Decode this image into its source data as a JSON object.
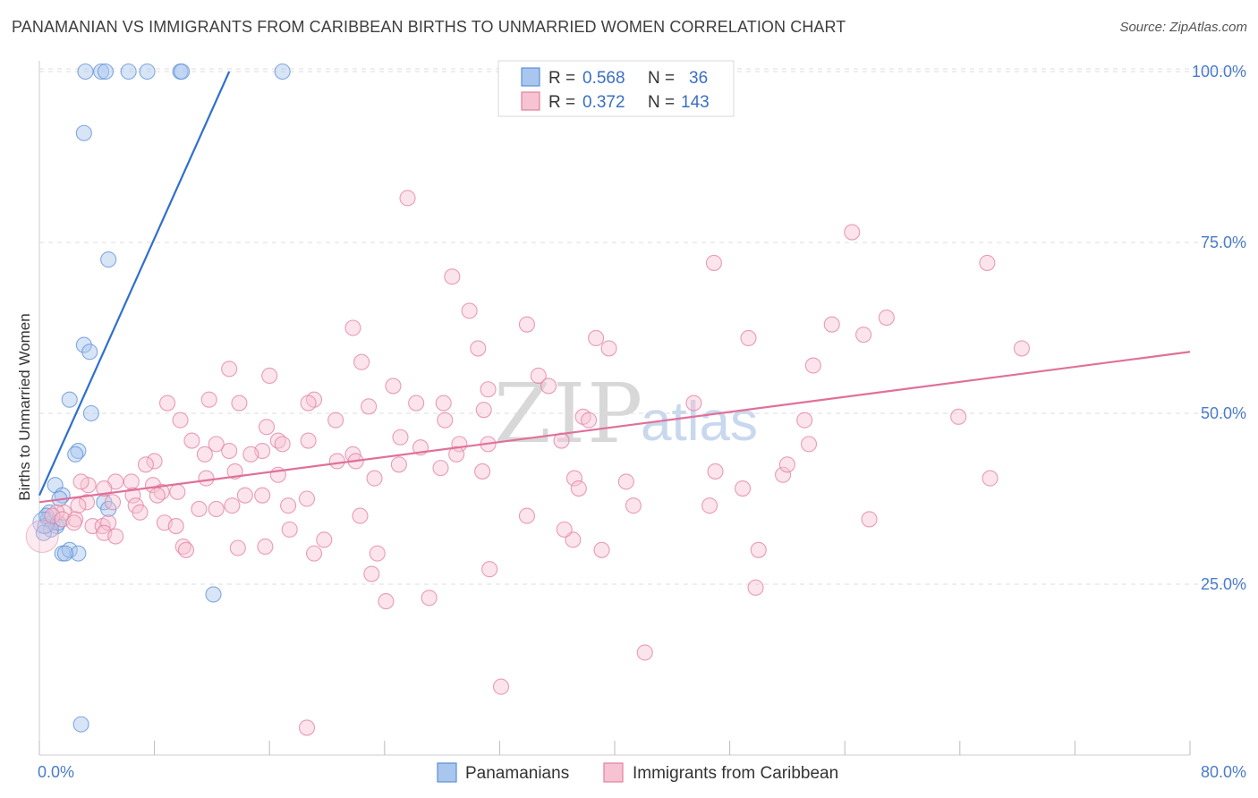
{
  "title": "PANAMANIAN VS IMMIGRANTS FROM CARIBBEAN BIRTHS TO UNMARRIED WOMEN CORRELATION CHART",
  "source": "Source: ZipAtlas.com",
  "watermark": {
    "zip": "ZIP",
    "atlas": "atlas"
  },
  "chart_data": {
    "type": "scatter",
    "title": "PANAMANIAN VS IMMIGRANTS FROM CARIBBEAN BIRTHS TO UNMARRIED WOMEN CORRELATION CHART",
    "xlabel": "",
    "ylabel": "Births to Unmarried Women",
    "xlim": [
      0,
      80
    ],
    "ylim": [
      0,
      105
    ],
    "x_tick_labels": {
      "min": "0.0%",
      "max": "80.0%"
    },
    "y_ticks": [
      25,
      50,
      75,
      100
    ],
    "y_tick_labels": [
      "25.0%",
      "50.0%",
      "75.0%",
      "100.0%"
    ],
    "grid": "horizontal dashed",
    "legend_position": "top-center",
    "stats_legend": [
      {
        "r_label": "R =",
        "r_value": "0.568",
        "n_label": "N =",
        "n_value": "36"
      },
      {
        "r_label": "R =",
        "r_value": "0.372",
        "n_label": "N =",
        "n_value": "143"
      }
    ],
    "series": [
      {
        "name": "Panamanians",
        "color": "#5b8fd6",
        "fill": "#a9c6ee",
        "trend": {
          "x0": 0,
          "y0": 38,
          "x1": 13.2,
          "y1": 100
        },
        "points": [
          [
            3.2,
            100
          ],
          [
            4.3,
            100
          ],
          [
            4.6,
            100
          ],
          [
            6.2,
            100
          ],
          [
            7.5,
            100
          ],
          [
            9.8,
            100
          ],
          [
            9.9,
            100
          ],
          [
            16.9,
            100
          ],
          [
            3.1,
            91
          ],
          [
            4.8,
            72.5
          ],
          [
            3.1,
            60
          ],
          [
            3.5,
            59
          ],
          [
            2.1,
            52
          ],
          [
            3.6,
            50
          ],
          [
            2.7,
            44.5
          ],
          [
            2.5,
            44
          ],
          [
            1.1,
            39.5
          ],
          [
            1.6,
            38
          ],
          [
            1.4,
            37.5
          ],
          [
            4.5,
            37
          ],
          [
            4.8,
            36
          ],
          [
            0.7,
            35.5
          ],
          [
            0.6,
            34.5
          ],
          [
            0.9,
            34
          ],
          [
            0.4,
            33.5
          ],
          [
            1.2,
            33.5
          ],
          [
            0.8,
            33
          ],
          [
            0.3,
            32.5
          ],
          [
            1.6,
            29.5
          ],
          [
            2.1,
            30
          ],
          [
            2.7,
            29.5
          ],
          [
            1.8,
            29.5
          ],
          [
            12.1,
            23.5
          ],
          [
            2.9,
            4.5
          ],
          [
            0.5,
            35
          ],
          [
            1.3,
            34
          ]
        ]
      },
      {
        "name": "Immigrants from Caribbean",
        "color": "#e27fa0",
        "fill": "#f6c3d3",
        "trend": {
          "x0": 0,
          "y0": 37,
          "x1": 80,
          "y1": 59
        },
        "points": [
          [
            25.6,
            81.5
          ],
          [
            28.7,
            70
          ],
          [
            56.5,
            76.5
          ],
          [
            46.9,
            72
          ],
          [
            65.9,
            72
          ],
          [
            29.9,
            65
          ],
          [
            33.9,
            63
          ],
          [
            21.8,
            62.5
          ],
          [
            58.9,
            64
          ],
          [
            55.1,
            63
          ],
          [
            57.3,
            61.5
          ],
          [
            38.7,
            61
          ],
          [
            49.3,
            61
          ],
          [
            39.6,
            59.5
          ],
          [
            30.5,
            59.5
          ],
          [
            68.3,
            59.5
          ],
          [
            22.4,
            57.5
          ],
          [
            13.2,
            56.5
          ],
          [
            16.0,
            55.5
          ],
          [
            53.8,
            57
          ],
          [
            34.7,
            55.5
          ],
          [
            35.4,
            54
          ],
          [
            24.6,
            54
          ],
          [
            31.2,
            53.5
          ],
          [
            19.1,
            52
          ],
          [
            8.9,
            51.5
          ],
          [
            11.8,
            52
          ],
          [
            26.2,
            51.5
          ],
          [
            13.9,
            51.5
          ],
          [
            28.1,
            51.5
          ],
          [
            22.9,
            51
          ],
          [
            18.7,
            51.5
          ],
          [
            45.5,
            51.5
          ],
          [
            37.8,
            49.5
          ],
          [
            30.9,
            50.5
          ],
          [
            38.2,
            49
          ],
          [
            28.2,
            49
          ],
          [
            20.6,
            49
          ],
          [
            15.8,
            48
          ],
          [
            9.8,
            49
          ],
          [
            63.9,
            49.5
          ],
          [
            53.2,
            49
          ],
          [
            16.6,
            46
          ],
          [
            18.7,
            46
          ],
          [
            25.1,
            46.5
          ],
          [
            12.3,
            45.5
          ],
          [
            10.6,
            46
          ],
          [
            13.2,
            44.5
          ],
          [
            26.5,
            45
          ],
          [
            16.9,
            45.5
          ],
          [
            15.5,
            44.5
          ],
          [
            8.0,
            43
          ],
          [
            31.2,
            45.5
          ],
          [
            36.3,
            46
          ],
          [
            29.2,
            45.5
          ],
          [
            21.8,
            44
          ],
          [
            11.5,
            44
          ],
          [
            14.7,
            44
          ],
          [
            20.7,
            43
          ],
          [
            22.0,
            43
          ],
          [
            29.0,
            44
          ],
          [
            27.9,
            42
          ],
          [
            7.4,
            42.5
          ],
          [
            13.6,
            41.5
          ],
          [
            16.6,
            41
          ],
          [
            11.6,
            40.5
          ],
          [
            30.8,
            41.5
          ],
          [
            25.0,
            42.5
          ],
          [
            23.3,
            40.5
          ],
          [
            5.3,
            40
          ],
          [
            6.4,
            40
          ],
          [
            3.4,
            39.5
          ],
          [
            2.9,
            40
          ],
          [
            4.5,
            39
          ],
          [
            7.9,
            39.5
          ],
          [
            9.6,
            38.5
          ],
          [
            8.5,
            38.5
          ],
          [
            14.3,
            38
          ],
          [
            8.2,
            38
          ],
          [
            6.5,
            38
          ],
          [
            6.7,
            36.5
          ],
          [
            5.1,
            37
          ],
          [
            3.3,
            37
          ],
          [
            2.7,
            36.5
          ],
          [
            1.7,
            35.5
          ],
          [
            1.2,
            35.5
          ],
          [
            0.9,
            35
          ],
          [
            1.6,
            34.5
          ],
          [
            2.5,
            34.5
          ],
          [
            2.4,
            34
          ],
          [
            3.7,
            33.5
          ],
          [
            4.4,
            33.5
          ],
          [
            4.8,
            34
          ],
          [
            7.0,
            35.5
          ],
          [
            13.4,
            36.5
          ],
          [
            11.1,
            36
          ],
          [
            18.6,
            37.5
          ],
          [
            12.3,
            36
          ],
          [
            8.7,
            34
          ],
          [
            15.5,
            38
          ],
          [
            17.3,
            36.5
          ],
          [
            22.3,
            35
          ],
          [
            9.5,
            33.5
          ],
          [
            17.4,
            33
          ],
          [
            4.5,
            32.5
          ],
          [
            5.3,
            32
          ],
          [
            19.8,
            31.5
          ],
          [
            10.0,
            30.5
          ],
          [
            10.2,
            30
          ],
          [
            13.8,
            30.3
          ],
          [
            15.7,
            30.5
          ],
          [
            19.1,
            29.5
          ],
          [
            23.5,
            29.5
          ],
          [
            23.1,
            26.5
          ],
          [
            31.3,
            27.2
          ],
          [
            24.1,
            22.5
          ],
          [
            27.1,
            23
          ],
          [
            37.1,
            31.5
          ],
          [
            36.5,
            33
          ],
          [
            39.1,
            30
          ],
          [
            37.2,
            40.5
          ],
          [
            37.5,
            39
          ],
          [
            40.8,
            40
          ],
          [
            41.3,
            36.5
          ],
          [
            47.0,
            41.5
          ],
          [
            48.9,
            39
          ],
          [
            50.0,
            30
          ],
          [
            51.7,
            41
          ],
          [
            57.7,
            34.5
          ],
          [
            53.5,
            45.5
          ],
          [
            52.0,
            42.5
          ],
          [
            49.8,
            24.5
          ],
          [
            46.6,
            36.5
          ],
          [
            66.1,
            40.5
          ],
          [
            42.1,
            15
          ],
          [
            33.9,
            35
          ],
          [
            32.1,
            10
          ],
          [
            18.6,
            4
          ]
        ]
      }
    ]
  },
  "legend_bottom": [
    "Panamanians",
    "Immigrants from Caribbean"
  ]
}
